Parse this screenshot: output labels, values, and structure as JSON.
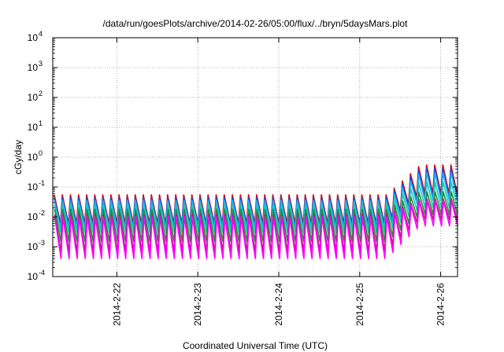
{
  "chart_data": {
    "type": "line",
    "title": "/data/run/goesPlots/archive/2014-02-26/05:00/flux/../bryn/5daysMars.plot",
    "xlabel": "Coordinated Universal Time (UTC)",
    "ylabel": "cGy/day",
    "y_scale": "log",
    "ylim": [
      0.0001,
      10000
    ],
    "y_ticks": [
      {
        "base": "10",
        "exp": "-4",
        "value": 0.0001
      },
      {
        "base": "10",
        "exp": "-3",
        "value": 0.001
      },
      {
        "base": "10",
        "exp": "-2",
        "value": 0.01
      },
      {
        "base": "10",
        "exp": "-1",
        "value": 0.1
      },
      {
        "base": "10",
        "exp": "0",
        "value": 1
      },
      {
        "base": "10",
        "exp": "1",
        "value": 10
      },
      {
        "base": "10",
        "exp": "2",
        "value": 100
      },
      {
        "base": "10",
        "exp": "3",
        "value": 1000
      },
      {
        "base": "10",
        "exp": "4",
        "value": 10000
      }
    ],
    "xlim": [
      "2014-02-21 05:00",
      "2014-02-26 05:00"
    ],
    "x_ticks": [
      "2014-2-22",
      "2014-2-23",
      "2014-2-24",
      "2014-2-25",
      "2014-2-26"
    ],
    "grid": true,
    "legend": "none",
    "sawtooth_cycles": 50,
    "series": [
      {
        "color": "#dd0000",
        "peaks": {
          "before": 0.055,
          "after": 0.55
        },
        "troughs": {
          "before": 0.006,
          "after": 0.06
        }
      },
      {
        "color": "#1a4fdd",
        "peaks": {
          "before": 0.045,
          "after": 0.42
        },
        "troughs": {
          "before": 0.005,
          "after": 0.045
        }
      },
      {
        "color": "#21b0ec",
        "peaks": {
          "before": 0.035,
          "after": 0.3
        },
        "troughs": {
          "before": 0.004,
          "after": 0.035
        }
      },
      {
        "color": "#16ccb8",
        "peaks": {
          "before": 0.025,
          "after": 0.15
        },
        "troughs": {
          "before": 0.003,
          "after": 0.02
        }
      },
      {
        "color": "#1b8f36",
        "peaks": {
          "before": 0.018,
          "after": 0.07
        },
        "troughs": {
          "before": 0.0015,
          "after": 0.012
        }
      },
      {
        "color": "#c0158a",
        "peaks": {
          "before": 0.012,
          "after": 0.04
        },
        "troughs": {
          "before": 0.0007,
          "after": 0.008
        }
      },
      {
        "color": "#ff00ff",
        "peaks": {
          "before": 0.01,
          "after": 0.035
        },
        "troughs": {
          "before": 0.0004,
          "after": 0.005
        }
      }
    ],
    "change_point": "2014-02-25 08:00"
  }
}
